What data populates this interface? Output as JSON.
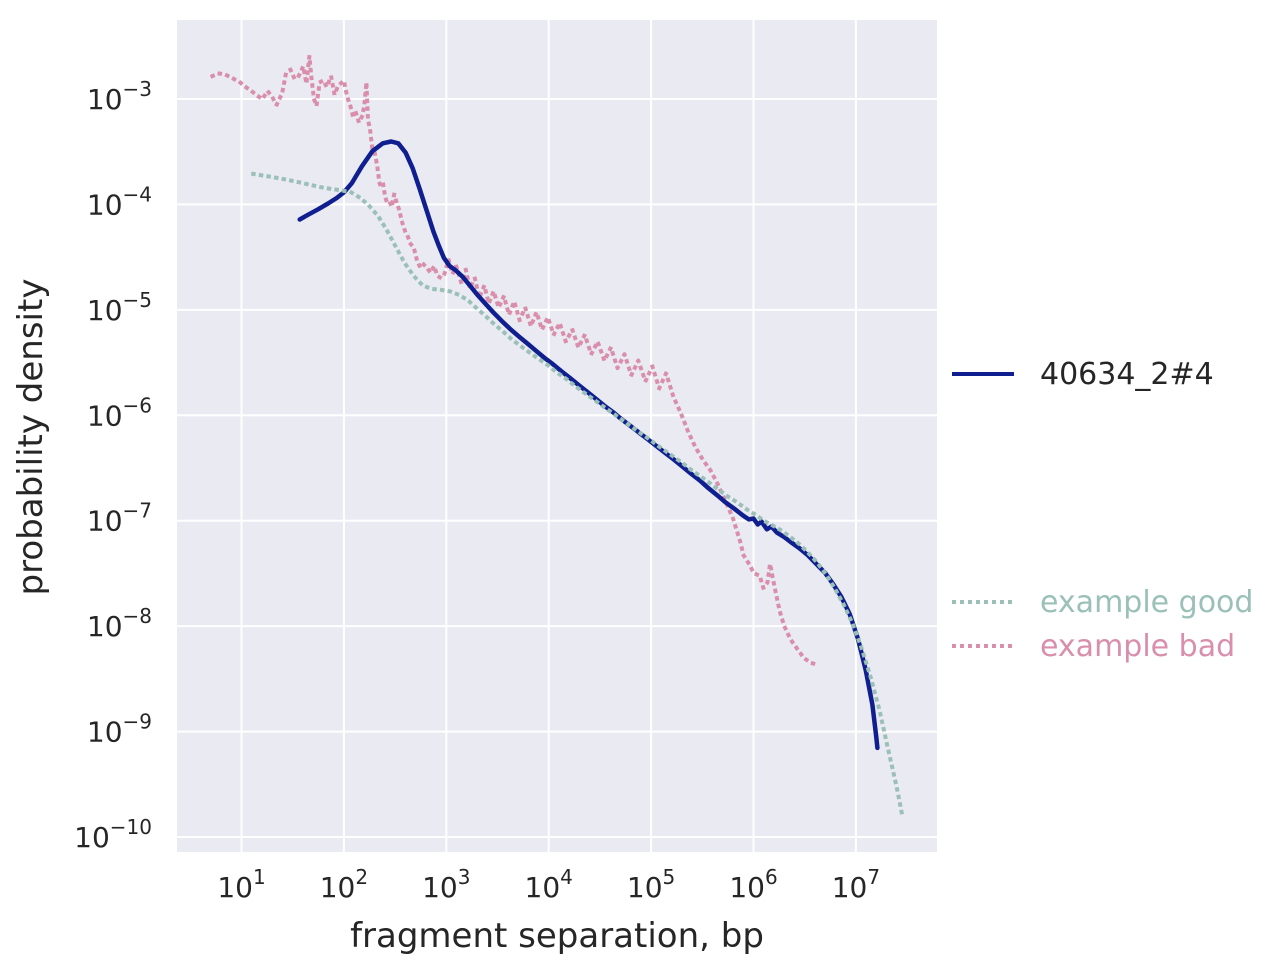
{
  "figure": {
    "background": "#ffffff",
    "text_color": "#262626"
  },
  "chart_data": {
    "type": "line",
    "title": "",
    "xlabel": "fragment separation, bp",
    "ylabel": "probability density",
    "x_scale": "log",
    "y_scale": "log",
    "xlim": [
      2.3,
      62000000
    ],
    "ylim": [
      7.4e-11,
      0.0056
    ],
    "grid": true,
    "background_color": "#eaeaf2",
    "grid_color": "#ffffff",
    "tick_base": "10",
    "x_tick_exponents": [
      1,
      2,
      3,
      4,
      5,
      6,
      7
    ],
    "y_tick_exponents": [
      -3,
      -4,
      -5,
      -6,
      -7,
      -8,
      -9,
      -10
    ],
    "legend_position": "right-outside",
    "legend": [
      {
        "label": "40634_2#4",
        "color": "#101f90",
        "text_color": "#262626",
        "line_style": "solid"
      },
      {
        "label": "example good",
        "color": "#9ac0b8",
        "text_color": "#9ac0b8",
        "line_style": "dotted"
      },
      {
        "label": "example bad",
        "color": "#d98fab",
        "text_color": "#d98fab",
        "line_style": "dotted"
      }
    ],
    "series": [
      {
        "name": "40634_2#4",
        "color": "#101f90",
        "style": "solid",
        "zorder": 2,
        "points": [
          [
            37,
            7.2e-05
          ],
          [
            45,
            8e-05
          ],
          [
            56,
            9e-05
          ],
          [
            70,
            0.000102
          ],
          [
            85,
            0.000115
          ],
          [
            100,
            0.00013
          ],
          [
            120,
            0.00016
          ],
          [
            150,
            0.00023
          ],
          [
            190,
            0.00032
          ],
          [
            240,
            0.00038
          ],
          [
            290,
            0.000395
          ],
          [
            340,
            0.00038
          ],
          [
            400,
            0.00031
          ],
          [
            470,
            0.00022
          ],
          [
            550,
            0.00014
          ],
          [
            650,
            8.5e-05
          ],
          [
            750,
            5.5e-05
          ],
          [
            850,
            4e-05
          ],
          [
            950,
            3.1e-05
          ],
          [
            1080,
            2.6e-05
          ],
          [
            1250,
            2.35e-05
          ],
          [
            1450,
            2.05e-05
          ],
          [
            1700,
            1.7e-05
          ],
          [
            2000,
            1.4e-05
          ],
          [
            2400,
            1.15e-05
          ],
          [
            2900,
            9.4e-06
          ],
          [
            3500,
            7.8e-06
          ],
          [
            4200,
            6.6e-06
          ],
          [
            5100,
            5.6e-06
          ],
          [
            6200,
            4.8e-06
          ],
          [
            7500,
            4.1e-06
          ],
          [
            9100,
            3.5e-06
          ],
          [
            11000,
            3.05e-06
          ],
          [
            13400,
            2.6e-06
          ],
          [
            16200,
            2.25e-06
          ],
          [
            19700,
            1.93e-06
          ],
          [
            24000,
            1.66e-06
          ],
          [
            29000,
            1.43e-06
          ],
          [
            35000,
            1.23e-06
          ],
          [
            43000,
            1.06e-06
          ],
          [
            52000,
            9.1e-07
          ],
          [
            63000,
            7.9e-07
          ],
          [
            77000,
            6.8e-07
          ],
          [
            93000,
            5.9e-07
          ],
          [
            113000,
            5.1e-07
          ],
          [
            137000,
            4.4e-07
          ],
          [
            167000,
            3.8e-07
          ],
          [
            200000,
            3.3e-07
          ],
          [
            245000,
            2.8e-07
          ],
          [
            300000,
            2.4e-07
          ],
          [
            360000,
            2.05e-07
          ],
          [
            440000,
            1.75e-07
          ],
          [
            530000,
            1.5e-07
          ],
          [
            650000,
            1.3e-07
          ],
          [
            790000,
            1.12e-07
          ],
          [
            900000,
            1.03e-07
          ],
          [
            1000000,
            1.05e-07
          ],
          [
            1100000,
            9.2e-08
          ],
          [
            1200000,
            9.8e-08
          ],
          [
            1350000,
            8.3e-08
          ],
          [
            1500000,
            8.8e-08
          ],
          [
            1700000,
            7.7e-08
          ],
          [
            2000000,
            7e-08
          ],
          [
            2300000,
            6.3e-08
          ],
          [
            2800000,
            5.5e-08
          ],
          [
            3400000,
            4.7e-08
          ],
          [
            4100000,
            3.9e-08
          ],
          [
            5000000,
            3.2e-08
          ],
          [
            6000000,
            2.5e-08
          ],
          [
            7200000,
            1.9e-08
          ],
          [
            8700000,
            1.3e-08
          ],
          [
            10500000,
            7.5e-09
          ],
          [
            12500000,
            3.8e-09
          ],
          [
            14500000,
            1.8e-09
          ],
          [
            15800000,
            9e-10
          ],
          [
            16200000,
            7e-10
          ]
        ]
      },
      {
        "name": "example good",
        "color": "#9ac0b8",
        "style": "dotted",
        "zorder": 3,
        "points": [
          [
            13,
            0.000195
          ],
          [
            16,
            0.000188
          ],
          [
            20,
            0.000182
          ],
          [
            25,
            0.000175
          ],
          [
            31,
            0.000168
          ],
          [
            39,
            0.00016
          ],
          [
            49,
            0.000152
          ],
          [
            61,
            0.000145
          ],
          [
            76,
            0.00014
          ],
          [
            95,
            0.000136
          ],
          [
            118,
            0.00013
          ],
          [
            145,
            0.000115
          ],
          [
            175,
            9.8e-05
          ],
          [
            215,
            7.8e-05
          ],
          [
            260,
            5.8e-05
          ],
          [
            320,
            4e-05
          ],
          [
            390,
            2.8e-05
          ],
          [
            480,
            2.1e-05
          ],
          [
            590,
            1.7e-05
          ],
          [
            720,
            1.58e-05
          ],
          [
            880,
            1.55e-05
          ],
          [
            1080,
            1.5e-05
          ],
          [
            1300,
            1.4e-05
          ],
          [
            1600,
            1.25e-05
          ],
          [
            1950,
            1.05e-05
          ],
          [
            2400,
            8.8e-06
          ],
          [
            2900,
            7.4e-06
          ],
          [
            3600,
            6.2e-06
          ],
          [
            4400,
            5.2e-06
          ],
          [
            5400,
            4.5e-06
          ],
          [
            6600,
            3.9e-06
          ],
          [
            8100,
            3.4e-06
          ],
          [
            10000,
            2.95e-06
          ],
          [
            12000,
            2.55e-06
          ],
          [
            15000,
            2.2e-06
          ],
          [
            18000,
            1.9e-06
          ],
          [
            22000,
            1.65e-06
          ],
          [
            27000,
            1.43e-06
          ],
          [
            33000,
            1.24e-06
          ],
          [
            41000,
            1.07e-06
          ],
          [
            50000,
            9.3e-07
          ],
          [
            61000,
            8.1e-07
          ],
          [
            75000,
            7e-07
          ],
          [
            92000,
            6.1e-07
          ],
          [
            112000,
            5.3e-07
          ],
          [
            137000,
            4.6e-07
          ],
          [
            168000,
            4e-07
          ],
          [
            205000,
            3.5e-07
          ],
          [
            250000,
            3e-07
          ],
          [
            310000,
            2.6e-07
          ],
          [
            380000,
            2.25e-07
          ],
          [
            460000,
            1.95e-07
          ],
          [
            560000,
            1.7e-07
          ],
          [
            690000,
            1.5e-07
          ],
          [
            840000,
            1.3e-07
          ],
          [
            1030000,
            1.15e-07
          ],
          [
            1260000,
            1e-07
          ],
          [
            1540000,
            9e-08
          ],
          [
            1900000,
            8e-08
          ],
          [
            2300000,
            7e-08
          ],
          [
            2800000,
            6e-08
          ],
          [
            3400000,
            5e-08
          ],
          [
            4200000,
            4e-08
          ],
          [
            5100000,
            3.1e-08
          ],
          [
            6200000,
            2.3e-08
          ],
          [
            7600000,
            1.6e-08
          ],
          [
            9300000,
            1.05e-08
          ],
          [
            11300000,
            6.3e-09
          ],
          [
            13800000,
            3.4e-09
          ],
          [
            17000000,
            1.6e-09
          ],
          [
            20500000,
            7e-10
          ],
          [
            25000000,
            3e-10
          ],
          [
            28000000,
            1.7e-10
          ]
        ]
      },
      {
        "name": "example bad",
        "color": "#d98fab",
        "style": "dotted",
        "zorder": 1,
        "points": [
          [
            5.2,
            0.00165
          ],
          [
            6,
            0.00175
          ],
          [
            7,
            0.0017
          ],
          [
            8,
            0.00159
          ],
          [
            9.5,
            0.00146
          ],
          [
            11,
            0.0013
          ],
          [
            12.5,
            0.00119
          ],
          [
            14,
            0.00109
          ],
          [
            16,
            0.001
          ],
          [
            18,
            0.00119
          ],
          [
            20,
            0.00104
          ],
          [
            22,
            0.00088
          ],
          [
            25,
            0.00114
          ],
          [
            27,
            0.0017
          ],
          [
            30,
            0.0019
          ],
          [
            33,
            0.00155
          ],
          [
            36,
            0.00164
          ],
          [
            40,
            0.00204
          ],
          [
            43,
            0.0014
          ],
          [
            46,
            0.00255
          ],
          [
            48,
            0.00163
          ],
          [
            51,
            0.001
          ],
          [
            54,
            0.00086
          ],
          [
            58,
            0.00144
          ],
          [
            63,
            0.0015
          ],
          [
            68,
            0.0013
          ],
          [
            75,
            0.00164
          ],
          [
            81,
            0.0011
          ],
          [
            88,
            0.00134
          ],
          [
            100,
            0.00149
          ],
          [
            108,
            0.00104
          ],
          [
            115,
            0.00088
          ],
          [
            123,
            0.00068
          ],
          [
            131,
            0.00074
          ],
          [
            140,
            0.0006
          ],
          [
            150,
            0.00068
          ],
          [
            158,
            0.00085
          ],
          [
            166,
            0.00144
          ],
          [
            172,
            0.00063
          ],
          [
            180,
            0.00052
          ],
          [
            190,
            0.00033
          ],
          [
            200,
            0.00031
          ],
          [
            212,
            0.00023
          ],
          [
            222,
            0.00016
          ],
          [
            232,
            0.000145
          ],
          [
            242,
            0.000155
          ],
          [
            252,
            0.00012
          ],
          [
            263,
            0.000105
          ],
          [
            278,
            0.000107
          ],
          [
            293,
            9.5e-05
          ],
          [
            310,
            0.000125
          ],
          [
            325,
            0.000107
          ],
          [
            345,
            9e-05
          ],
          [
            370,
            6.8e-05
          ],
          [
            395,
            5.6e-05
          ],
          [
            420,
            5e-05
          ],
          [
            450,
            4.2e-05
          ],
          [
            480,
            3.9e-05
          ],
          [
            520,
            2.9e-05
          ],
          [
            560,
            2.5e-05
          ],
          [
            600,
            2.7e-05
          ],
          [
            650,
            2.5e-05
          ],
          [
            700,
            2.25e-05
          ],
          [
            760,
            2.6e-05
          ],
          [
            820,
            2.1e-05
          ],
          [
            890,
            2e-05
          ],
          [
            960,
            2.2e-05
          ],
          [
            1050,
            3e-05
          ],
          [
            1150,
            2.2e-05
          ],
          [
            1250,
            2.6e-05
          ],
          [
            1400,
            1.8e-05
          ],
          [
            1550,
            2.4e-05
          ],
          [
            1700,
            1.6e-05
          ],
          [
            1900,
            2e-05
          ],
          [
            2100,
            1.3e-05
          ],
          [
            2350,
            1.7e-05
          ],
          [
            2600,
            1.15e-05
          ],
          [
            2900,
            1.5e-05
          ],
          [
            3250,
            1.05e-05
          ],
          [
            3650,
            1.35e-05
          ],
          [
            4100,
            9e-06
          ],
          [
            4600,
            1.2e-05
          ],
          [
            5200,
            8e-06
          ],
          [
            5900,
            1.05e-05
          ],
          [
            6700,
            7e-06
          ],
          [
            7600,
            9.5e-06
          ],
          [
            8600,
            6.5e-06
          ],
          [
            9800,
            8.5e-06
          ],
          [
            11200,
            5.8e-06
          ],
          [
            12800,
            7.5e-06
          ],
          [
            14700,
            5e-06
          ],
          [
            17000,
            6.5e-06
          ],
          [
            19500,
            4.4e-06
          ],
          [
            22500,
            5.8e-06
          ],
          [
            26000,
            3.8e-06
          ],
          [
            30000,
            5e-06
          ],
          [
            35000,
            3.3e-06
          ],
          [
            40500,
            4.4e-06
          ],
          [
            47000,
            2.8e-06
          ],
          [
            55000,
            3.8e-06
          ],
          [
            64000,
            2.4e-06
          ],
          [
            75000,
            3.3e-06
          ],
          [
            88000,
            2.1e-06
          ],
          [
            103000,
            2.9e-06
          ],
          [
            120000,
            1.8e-06
          ],
          [
            140000,
            2.5e-06
          ],
          [
            165000,
            1.5e-06
          ],
          [
            195000,
            1.05e-06
          ],
          [
            230000,
            7e-07
          ],
          [
            270000,
            5e-07
          ],
          [
            320000,
            3.8e-07
          ],
          [
            380000,
            3e-07
          ],
          [
            450000,
            2.2e-07
          ],
          [
            530000,
            1.55e-07
          ],
          [
            630000,
            1.05e-07
          ],
          [
            740000,
            6.4e-08
          ],
          [
            800000,
            4.7e-08
          ],
          [
            920000,
            3.8e-08
          ],
          [
            1000000,
            3.2e-08
          ],
          [
            1150000,
            3e-08
          ],
          [
            1250000,
            2.3e-08
          ],
          [
            1370000,
            2.6e-08
          ],
          [
            1450000,
            3.9e-08
          ],
          [
            1600000,
            2.4e-08
          ],
          [
            1800000,
            1.4e-08
          ],
          [
            2000000,
            1e-08
          ],
          [
            2300000,
            7.5e-09
          ],
          [
            2700000,
            6e-09
          ],
          [
            3100000,
            5e-09
          ],
          [
            3600000,
            4.5e-09
          ],
          [
            4200000,
            4.3e-09
          ]
        ]
      }
    ]
  }
}
